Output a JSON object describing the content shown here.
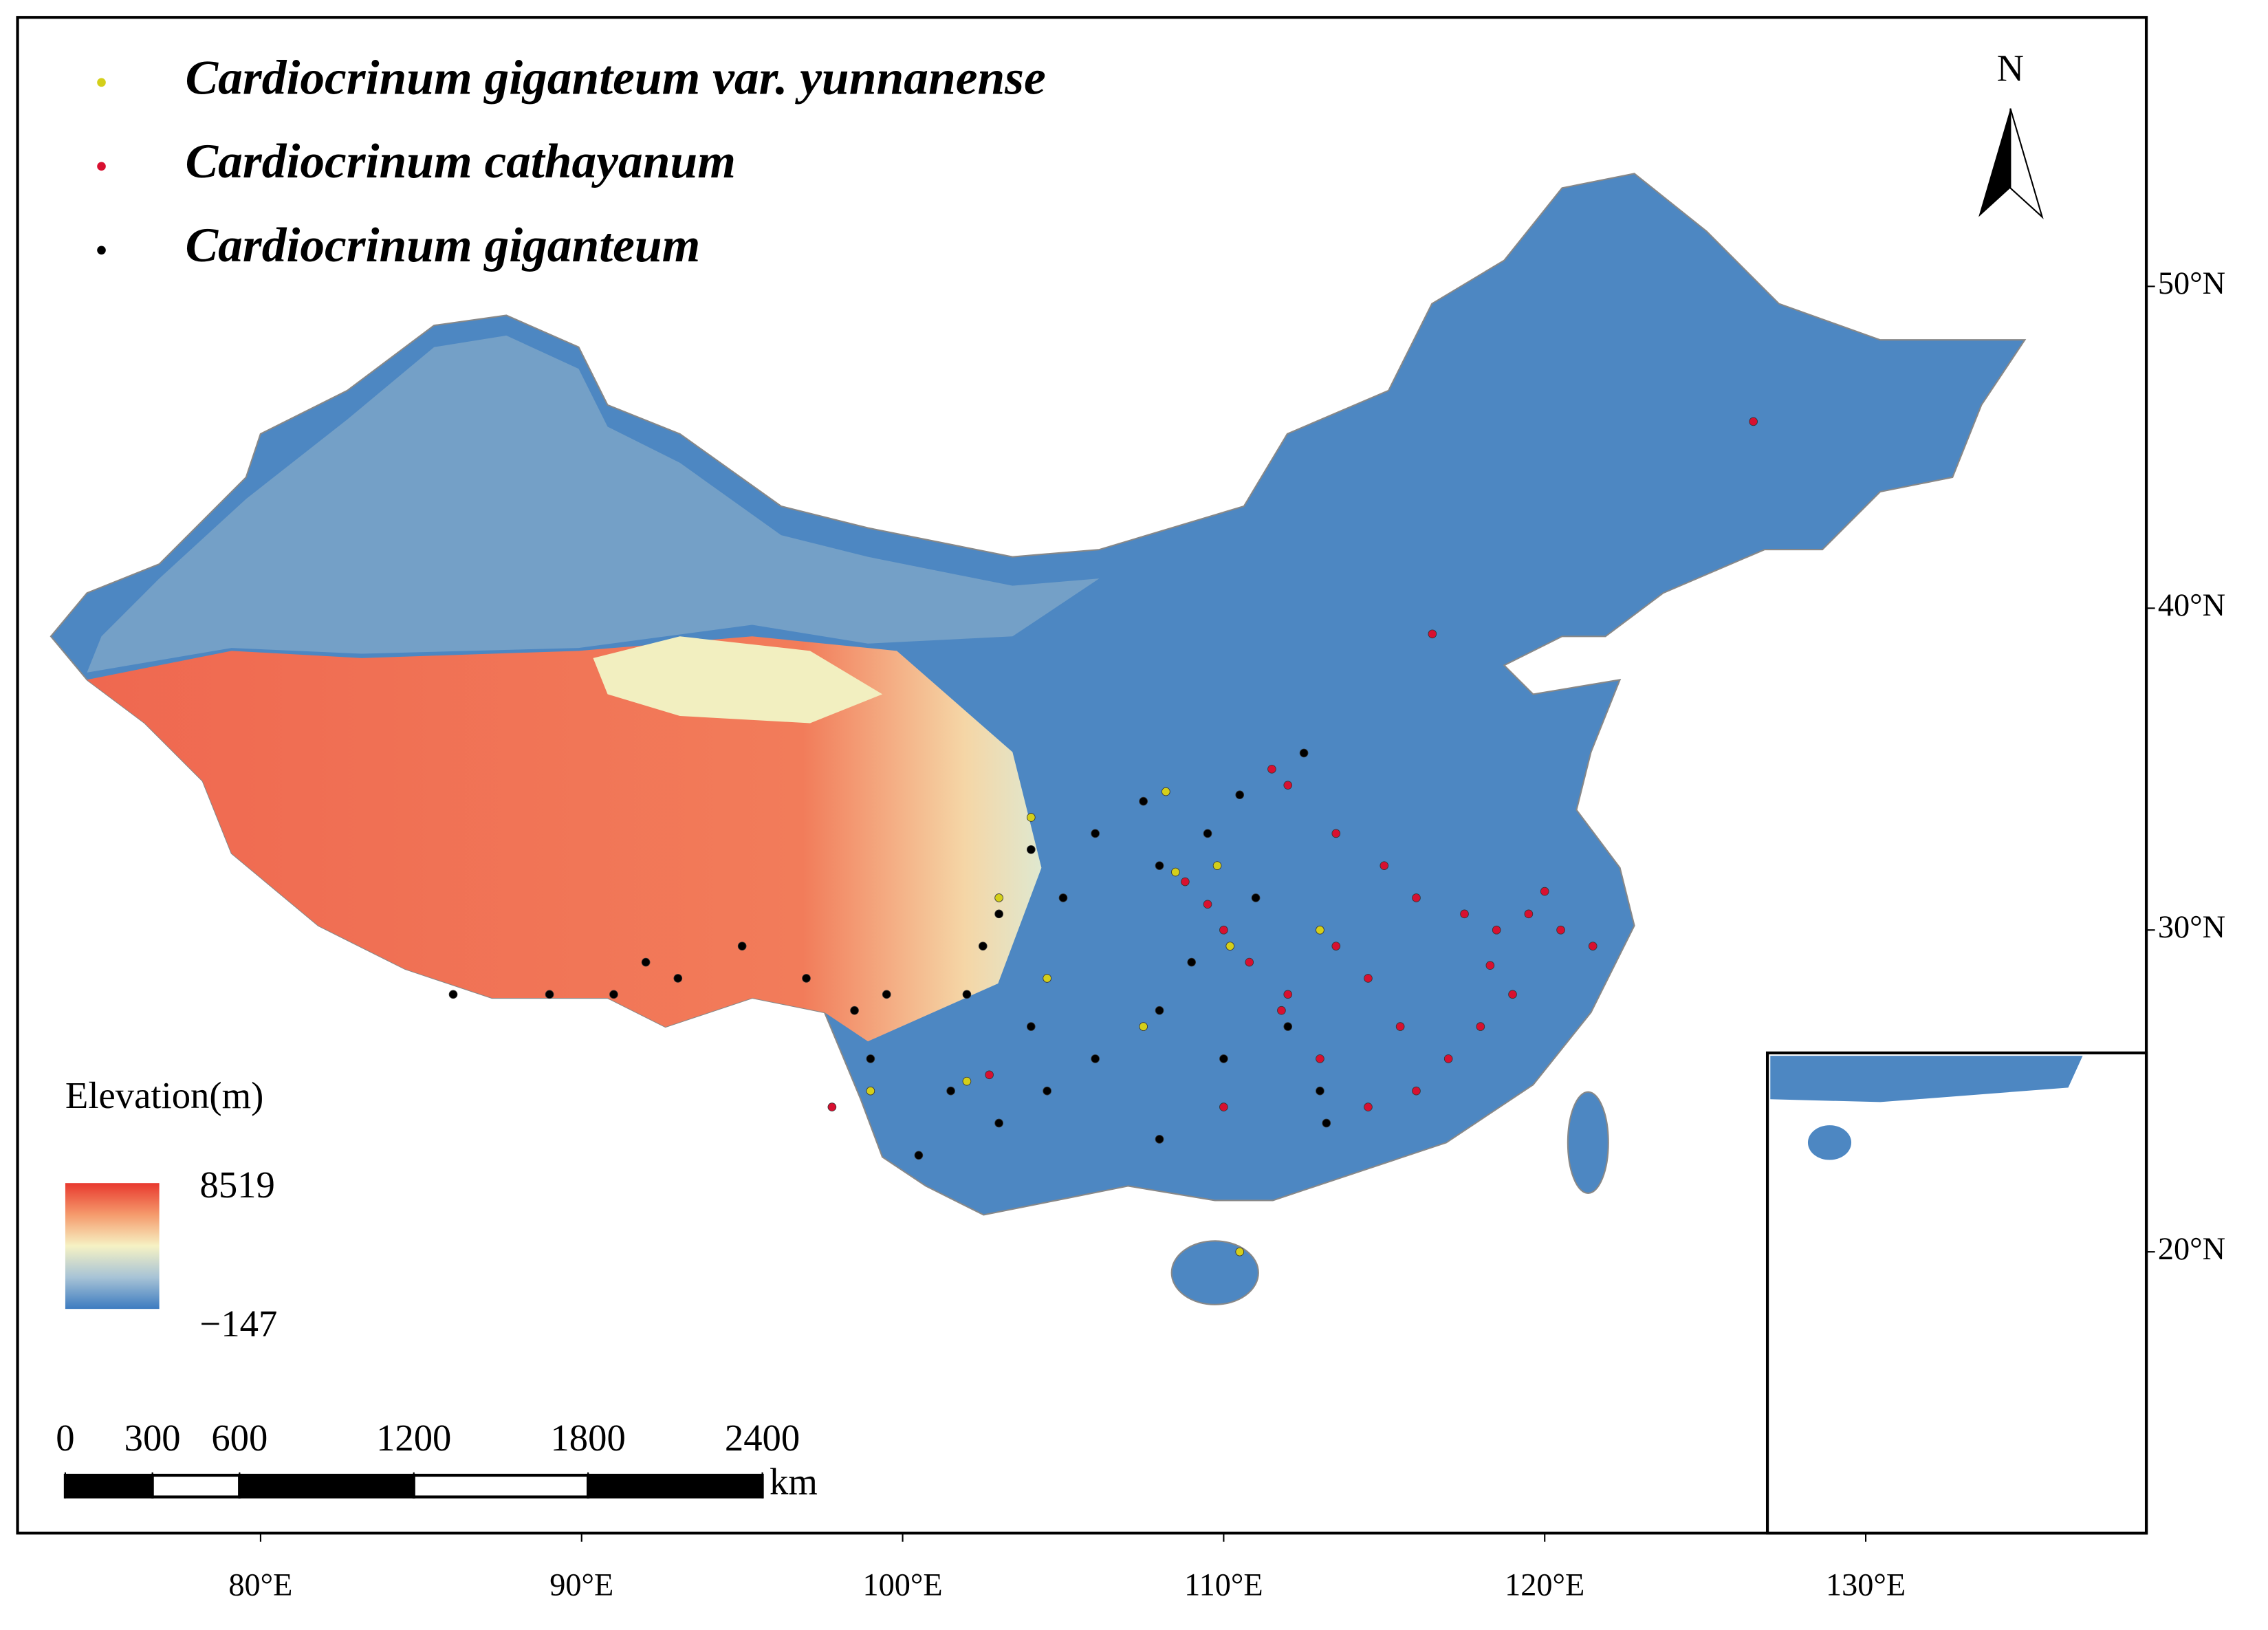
{
  "map": {
    "series": [
      {
        "name": "Cardiocrinum giganteum var. yunnanense",
        "color": "#d4cf1a",
        "lon": [
          104,
          108.2,
          108.5,
          109.8,
          110.2,
          103,
          102,
          99,
          104.5,
          107.5,
          110.5,
          113
        ],
        "lat": [
          33.5,
          34.3,
          31.8,
          32,
          29.5,
          31,
          25.3,
          25,
          28.5,
          27,
          20,
          30
        ]
      },
      {
        "name": "Cardiocrinum cathayanum",
        "color": "#d81030",
        "lon": [
          116.5,
          126.5,
          111.5,
          112,
          113.5,
          115,
          116,
          117.5,
          118.5,
          119.5,
          120.5,
          121.5,
          119,
          118,
          117,
          115.5,
          114.5,
          113.5,
          112,
          110,
          109.5,
          108.8,
          110.8,
          111.8,
          113,
          114.5,
          116,
          110,
          118.3,
          120,
          97.8,
          102.7
        ],
        "lat": [
          39.2,
          45.8,
          35,
          34.5,
          33,
          32,
          31,
          30.5,
          30,
          30.5,
          30,
          29.5,
          28,
          27,
          26,
          27,
          28.5,
          29.5,
          28,
          30,
          30.8,
          31.5,
          29,
          27.5,
          26,
          24.5,
          25,
          24.5,
          28.9,
          31.2,
          24.5,
          25.5
        ]
      },
      {
        "name": "Cardiocrinum giganteum",
        "color": "#000000",
        "lon": [
          102.5,
          103,
          102,
          104,
          105,
          106,
          107.5,
          108,
          109.5,
          110.5,
          111,
          109,
          108,
          106,
          104.5,
          103,
          101.5,
          99,
          99.5,
          98.5,
          97,
          95,
          93,
          91,
          89,
          86,
          92,
          100.5,
          110,
          112,
          113,
          113.2,
          108,
          104,
          112.5
        ],
        "lat": [
          29.5,
          30.5,
          28,
          27,
          31,
          33,
          34,
          32,
          33,
          34.2,
          31,
          29,
          27.5,
          26,
          25,
          24,
          25,
          26,
          28,
          27.5,
          28.5,
          29.5,
          28.5,
          28,
          28,
          28,
          29,
          23,
          26,
          27,
          25,
          24,
          23.5,
          32.5,
          35.5
        ]
      }
    ],
    "north": "N",
    "elevation": {
      "title": "Elevation(m)",
      "max": 8519,
      "min": {
        "value": -147,
        "label": "−147"
      }
    },
    "scale_bar": {
      "ticks": [
        0,
        300,
        600,
        1200,
        1800,
        2400
      ],
      "unit": "km"
    },
    "xlim": [
      72.43,
      138.74
    ],
    "xticks": [
      {
        "value": 80,
        "label": "80°E"
      },
      {
        "value": 90,
        "label": "90°E"
      },
      {
        "value": 100,
        "label": "100°E"
      },
      {
        "value": 110,
        "label": "110°E"
      },
      {
        "value": 120,
        "label": "120°E"
      },
      {
        "value": 130,
        "label": "130°E"
      }
    ],
    "ylim": [
      11.26,
      58.36
    ],
    "yticks": [
      {
        "value": 20,
        "label": "20°N"
      },
      {
        "value": 30,
        "label": "30°N"
      },
      {
        "value": 40,
        "label": "40°N"
      },
      {
        "value": 50,
        "label": "50°N"
      }
    ]
  }
}
